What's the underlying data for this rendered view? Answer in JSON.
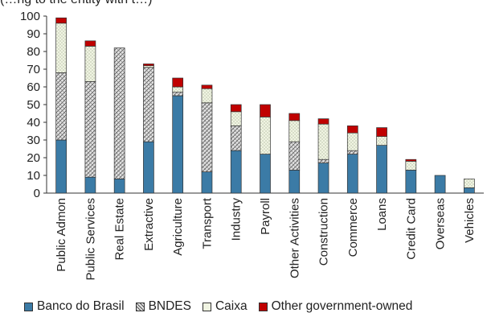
{
  "chart_data": {
    "type": "bar",
    "stacked": true,
    "title": "(…ng to the entity with t…)",
    "ylim": [
      0,
      100
    ],
    "yticks": [
      0,
      10,
      20,
      30,
      40,
      50,
      60,
      70,
      80,
      90,
      100
    ],
    "grid": false,
    "legend_position": "bottom",
    "categories": [
      "Public Admon",
      "Public Services",
      "Real Estate",
      "Extractive",
      "Agriculture",
      "Transport",
      "Industry",
      "Payroll",
      "Other Activities",
      "Construction",
      "Commerce",
      "Loans",
      "Credit Card",
      "Overseas",
      "Vehicles"
    ],
    "series": [
      {
        "name": "Banco do Brasil",
        "color": "#3b7ba6",
        "pattern": "solid",
        "values": [
          30,
          9,
          8,
          29,
          55,
          12,
          24,
          22,
          13,
          17,
          22,
          27,
          13,
          10,
          3
        ]
      },
      {
        "name": "BNDES",
        "color": "#d6d6d6",
        "pattern": "crosshatch",
        "values": [
          38,
          54,
          74,
          42,
          2,
          39,
          14,
          0,
          16,
          2,
          2,
          0,
          0,
          0,
          0
        ]
      },
      {
        "name": "Caixa",
        "color": "#eef3df",
        "pattern": "dots",
        "values": [
          28,
          20,
          0,
          1,
          3,
          8,
          8,
          21,
          12,
          20,
          10,
          5,
          5,
          0,
          5
        ]
      },
      {
        "name": "Other government-owned",
        "color": "#c00000",
        "pattern": "solid",
        "values": [
          3,
          3,
          0,
          1,
          5,
          2,
          4,
          7,
          4,
          3,
          4,
          5,
          1,
          0,
          0
        ]
      }
    ]
  }
}
